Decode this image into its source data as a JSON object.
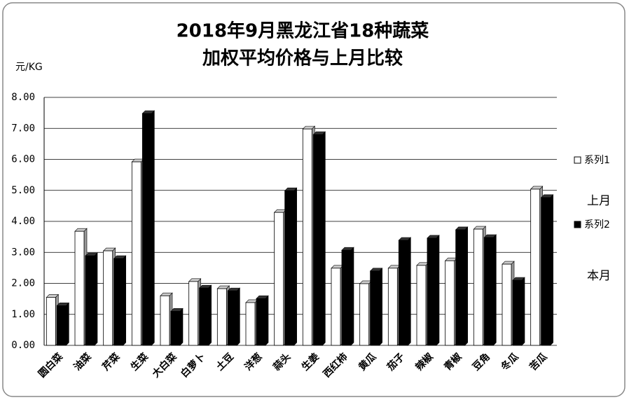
{
  "chart_data": {
    "type": "bar",
    "title": [
      "2018年9月黑龙江省18种蔬菜",
      "加权平均价格与上月比较"
    ],
    "y_label": "元/KG",
    "categories": [
      "圆白菜",
      "油菜",
      "芹菜",
      "生菜",
      "大白菜",
      "白萝卜",
      "土豆",
      "洋葱",
      "蒜头",
      "生姜",
      "西红柿",
      "黄瓜",
      "茄子",
      "辣椒",
      "青椒",
      "豆角",
      "冬瓜",
      "苦瓜"
    ],
    "series": [
      {
        "name": "系列1",
        "color": "#ffffff",
        "values": [
          1.55,
          3.68,
          3.05,
          5.92,
          1.6,
          2.06,
          1.83,
          1.38,
          4.29,
          6.98,
          2.49,
          1.99,
          2.49,
          2.58,
          2.73,
          3.75,
          2.62,
          5.04
        ]
      },
      {
        "name": "系列2",
        "color": "#000000",
        "values": [
          1.28,
          2.89,
          2.8,
          7.48,
          1.1,
          1.85,
          1.76,
          1.51,
          4.99,
          6.8,
          3.07,
          2.4,
          3.39,
          3.46,
          3.73,
          3.48,
          2.1,
          4.77
        ]
      }
    ],
    "annotations": [
      "上月",
      "本月"
    ],
    "ylim": [
      0,
      8
    ],
    "yticks": [
      {
        "value": 0,
        "label": "0.00"
      },
      {
        "value": 1,
        "label": "1.00"
      },
      {
        "value": 2,
        "label": "2.00"
      },
      {
        "value": 3,
        "label": "3.00"
      },
      {
        "value": 4,
        "label": "4.00"
      },
      {
        "value": 5,
        "label": "5.00"
      },
      {
        "value": 6,
        "label": "6.00"
      },
      {
        "value": 7,
        "label": "7.00"
      },
      {
        "value": 8,
        "label": "8.00"
      }
    ],
    "grid": true
  }
}
